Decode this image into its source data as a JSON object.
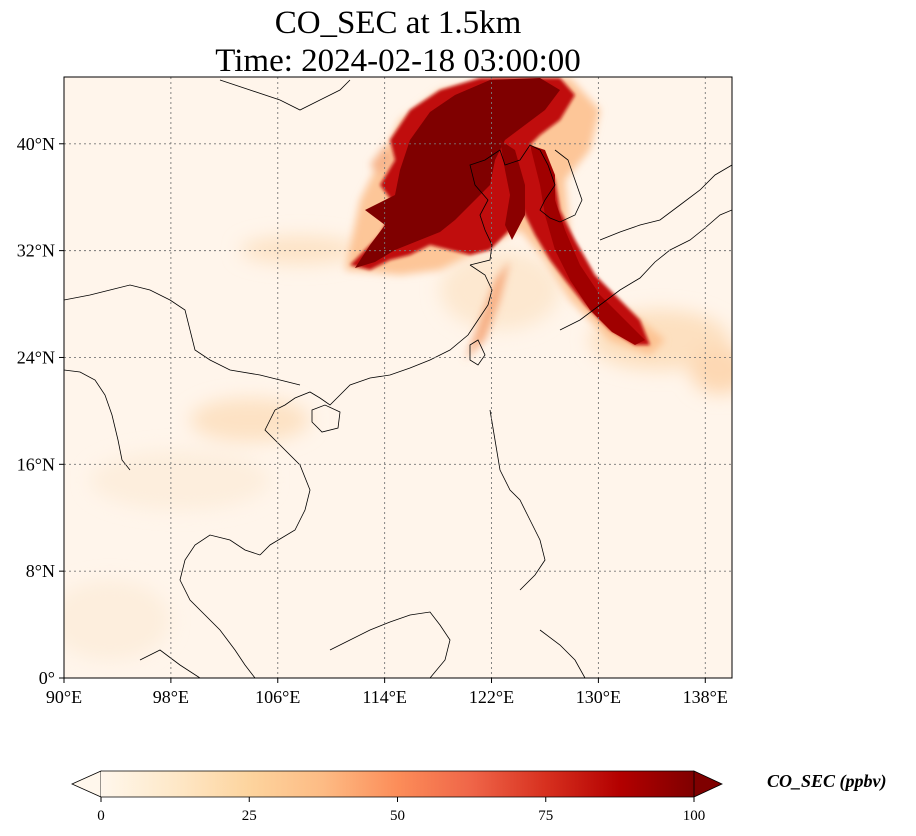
{
  "title": {
    "line1": "CO_SEC at 1.5km",
    "line2": "Time: 2024-02-18 03:00:00"
  },
  "map": {
    "lon_range": [
      90,
      140
    ],
    "lat_range": [
      0,
      45
    ],
    "gridlines": true,
    "lon_ticks": [
      {
        "value": 90,
        "label": "90°E"
      },
      {
        "value": 98,
        "label": "98°E"
      },
      {
        "value": 106,
        "label": "106°E"
      },
      {
        "value": 114,
        "label": "114°E"
      },
      {
        "value": 122,
        "label": "122°E"
      },
      {
        "value": 130,
        "label": "130°E"
      },
      {
        "value": 138,
        "label": "138°E"
      }
    ],
    "lat_ticks": [
      {
        "value": 0,
        "label": "0°"
      },
      {
        "value": 8,
        "label": "8°N"
      },
      {
        "value": 16,
        "label": "16°N"
      },
      {
        "value": 24,
        "label": "24°N"
      },
      {
        "value": 32,
        "label": "32°N"
      },
      {
        "value": 40,
        "label": "40°N"
      }
    ]
  },
  "colorbar": {
    "label": "CO_SEC (ppbv)",
    "ticks": [
      "0",
      "25",
      "50",
      "75",
      "100"
    ],
    "tick_values": [
      0,
      25,
      50,
      75,
      100
    ],
    "range": [
      0,
      100
    ],
    "extend": "both",
    "colormap": [
      "#fff5eb",
      "#fee6ce",
      "#fdd0a2",
      "#fdae6b",
      "#fd8d3c",
      "#f16913",
      "#d94801",
      "#a63603",
      "#7f2704"
    ],
    "colormap_name": "OrRd-style",
    "colors": [
      "#fff7ec",
      "#fee8c8",
      "#fdd49e",
      "#fdbb84",
      "#fc8d59",
      "#ef6548",
      "#d7301f",
      "#b30000",
      "#7f0000"
    ]
  }
}
